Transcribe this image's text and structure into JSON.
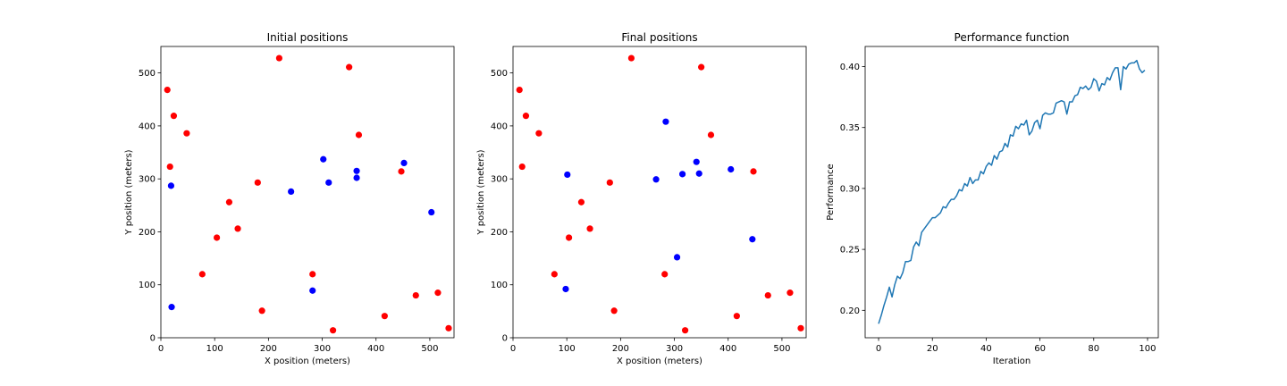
{
  "chart_data": [
    {
      "type": "scatter",
      "title": "Initial positions",
      "xlabel": "X position (meters)",
      "ylabel": "Y position (meters)",
      "xlim": [
        0,
        545
      ],
      "ylim": [
        0,
        550
      ],
      "xticks": [
        0,
        100,
        200,
        300,
        400,
        500
      ],
      "yticks": [
        0,
        100,
        200,
        300,
        400,
        500
      ],
      "grid": false,
      "colors": {
        "red": "#ff0000",
        "blue": "#0000ff"
      },
      "series": [
        {
          "color": "red",
          "points": [
            [
              12,
              468
            ],
            [
              24,
              419
            ],
            [
              17,
              323
            ],
            [
              48,
              386
            ],
            [
              220,
              528
            ],
            [
              350,
              511
            ],
            [
              368,
              383
            ],
            [
              180,
              293
            ],
            [
              127,
              256
            ],
            [
              104,
              189
            ],
            [
              143,
              206
            ],
            [
              77,
              120
            ],
            [
              282,
              120
            ],
            [
              188,
              51
            ],
            [
              320,
              14
            ],
            [
              416,
              41
            ],
            [
              447,
              314
            ],
            [
              474,
              80
            ],
            [
              515,
              85
            ],
            [
              535,
              18
            ]
          ]
        },
        {
          "color": "blue",
          "points": [
            [
              19,
              287
            ],
            [
              20,
              58
            ],
            [
              242,
              276
            ],
            [
              302,
              337
            ],
            [
              312,
              293
            ],
            [
              364,
              315
            ],
            [
              364,
              302
            ],
            [
              452,
              330
            ],
            [
              503,
              237
            ],
            [
              282,
              89
            ]
          ]
        }
      ]
    },
    {
      "type": "scatter",
      "title": "Final positions",
      "xlabel": "X position (meters)",
      "ylabel": "Y position (meters)",
      "xlim": [
        0,
        545
      ],
      "ylim": [
        0,
        550
      ],
      "xticks": [
        0,
        100,
        200,
        300,
        400,
        500
      ],
      "yticks": [
        0,
        100,
        200,
        300,
        400,
        500
      ],
      "grid": false,
      "colors": {
        "red": "#ff0000",
        "blue": "#0000ff"
      },
      "series": [
        {
          "color": "red",
          "points": [
            [
              12,
              468
            ],
            [
              24,
              419
            ],
            [
              17,
              323
            ],
            [
              48,
              386
            ],
            [
              220,
              528
            ],
            [
              350,
              511
            ],
            [
              368,
              383
            ],
            [
              180,
              293
            ],
            [
              127,
              256
            ],
            [
              104,
              189
            ],
            [
              143,
              206
            ],
            [
              77,
              120
            ],
            [
              282,
              120
            ],
            [
              188,
              51
            ],
            [
              320,
              14
            ],
            [
              416,
              41
            ],
            [
              447,
              314
            ],
            [
              474,
              80
            ],
            [
              515,
              85
            ],
            [
              535,
              18
            ]
          ]
        },
        {
          "color": "blue",
          "points": [
            [
              284,
              408
            ],
            [
              101,
              308
            ],
            [
              266,
              299
            ],
            [
              315,
              309
            ],
            [
              341,
              332
            ],
            [
              346,
              310
            ],
            [
              405,
              318
            ],
            [
              445,
              186
            ],
            [
              305,
              152
            ],
            [
              98,
              92
            ]
          ]
        }
      ]
    },
    {
      "type": "line",
      "title": "Performance function",
      "xlabel": "Iteration",
      "ylabel": "Performance",
      "xlim": [
        -5,
        104
      ],
      "ylim": [
        0.1775,
        0.4165
      ],
      "xticks": [
        0,
        20,
        40,
        60,
        80,
        100
      ],
      "yticks": [
        0.2,
        0.25,
        0.3,
        0.35,
        0.4
      ],
      "ytick_labels": [
        "0.20",
        "0.25",
        "0.30",
        "0.35",
        "0.40"
      ],
      "grid": false,
      "line_color": "#1f77b4",
      "series": [
        {
          "x": [
            0,
            1,
            2,
            3,
            4,
            5,
            6,
            7,
            8,
            9,
            10,
            11,
            12,
            13,
            14,
            15,
            16,
            17,
            18,
            19,
            20,
            21,
            22,
            23,
            24,
            25,
            26,
            27,
            28,
            29,
            30,
            31,
            32,
            33,
            34,
            35,
            36,
            37,
            38,
            39,
            40,
            41,
            42,
            43,
            44,
            45,
            46,
            47,
            48,
            49,
            50,
            51,
            52,
            53,
            54,
            55,
            56,
            57,
            58,
            59,
            60,
            61,
            62,
            63,
            64,
            65,
            66,
            67,
            68,
            69,
            70,
            71,
            72,
            73,
            74,
            75,
            76,
            77,
            78,
            79,
            80,
            81,
            82,
            83,
            84,
            85,
            86,
            87,
            88,
            89,
            90,
            91,
            92,
            93,
            94,
            95,
            96,
            97,
            98,
            99
          ],
          "y": [
            0.189,
            0.196,
            0.204,
            0.211,
            0.219,
            0.211,
            0.221,
            0.228,
            0.226,
            0.231,
            0.24,
            0.24,
            0.241,
            0.252,
            0.256,
            0.253,
            0.264,
            0.267,
            0.27,
            0.273,
            0.276,
            0.276,
            0.278,
            0.28,
            0.285,
            0.284,
            0.288,
            0.291,
            0.291,
            0.294,
            0.299,
            0.298,
            0.304,
            0.302,
            0.309,
            0.304,
            0.307,
            0.307,
            0.314,
            0.312,
            0.318,
            0.321,
            0.319,
            0.327,
            0.324,
            0.33,
            0.331,
            0.337,
            0.334,
            0.344,
            0.343,
            0.351,
            0.349,
            0.353,
            0.352,
            0.356,
            0.344,
            0.347,
            0.354,
            0.356,
            0.349,
            0.36,
            0.362,
            0.361,
            0.361,
            0.362,
            0.37,
            0.371,
            0.372,
            0.371,
            0.361,
            0.371,
            0.371,
            0.376,
            0.377,
            0.383,
            0.382,
            0.384,
            0.381,
            0.383,
            0.39,
            0.388,
            0.38,
            0.386,
            0.385,
            0.391,
            0.389,
            0.395,
            0.399,
            0.399,
            0.381,
            0.4,
            0.398,
            0.402,
            0.403,
            0.403,
            0.405,
            0.398,
            0.395,
            0.397
          ]
        }
      ]
    }
  ]
}
